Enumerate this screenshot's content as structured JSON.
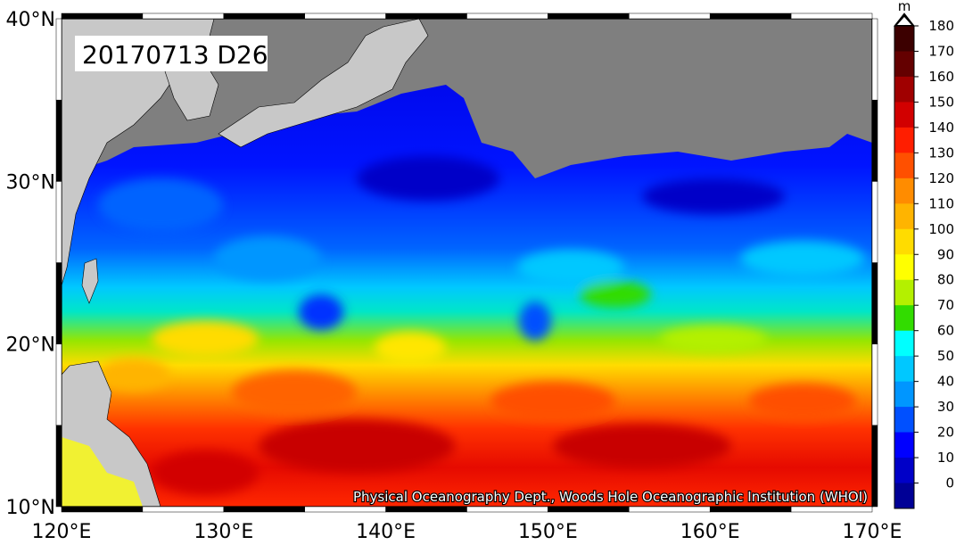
{
  "map": {
    "date_label": "20170713 D26",
    "credit": "Physical Oceanography Dept., Woods Hole Oceanographic Institution (WHOI)",
    "land_color": "#7f7f7f",
    "continent_color": "#c8c8c8",
    "x_ticks": [
      "120°E",
      "130°E",
      "140°E",
      "150°E",
      "160°E",
      "170°E"
    ],
    "y_ticks": [
      "40°N",
      "30°N",
      "20°N",
      "10°N"
    ],
    "lon_range": [
      120,
      170
    ],
    "lat_range": [
      10,
      40
    ]
  },
  "colorbar": {
    "unit": "m",
    "ticks": [
      "180",
      "170",
      "160",
      "150",
      "140",
      "130",
      "120",
      "110",
      "100",
      "90",
      "80",
      "70",
      "60",
      "50",
      "40",
      "30",
      "20",
      "10",
      "0"
    ],
    "colors": [
      "#3c0000",
      "#640000",
      "#a00000",
      "#d20000",
      "#ff1e00",
      "#ff5000",
      "#ff8c00",
      "#ffb400",
      "#ffdc00",
      "#ffff00",
      "#b4f000",
      "#32dc00",
      "#00ffff",
      "#00c8ff",
      "#0096ff",
      "#0050ff",
      "#0000ff",
      "#0000c8",
      "#000096"
    ]
  }
}
